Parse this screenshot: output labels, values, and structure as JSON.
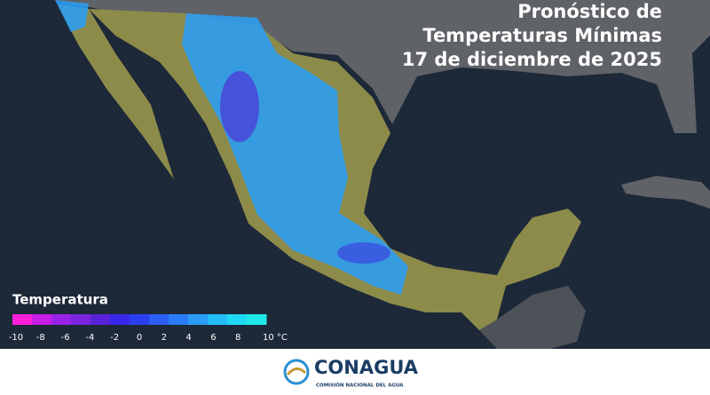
{
  "header": {
    "title_lines": [
      "Pronóstico de",
      "Temperaturas Mínimas",
      "17 de diciembre de 2025"
    ]
  },
  "legend": {
    "title": "Temperatura",
    "ticks": [
      "-10",
      "-8",
      "-6",
      "-4",
      "-2",
      "0",
      "2",
      "4",
      "6",
      "8",
      "10 °C"
    ],
    "colors": [
      "#ff1fd8",
      "#c81ee8",
      "#9a22e8",
      "#7a24e0",
      "#5a22d8",
      "#3a26e8",
      "#2a40f0",
      "#2a5ef4",
      "#2a7cf6",
      "#2a9cf8",
      "#22bcf8",
      "#1ed8f4",
      "#1ee8e8"
    ]
  },
  "footer": {
    "logo": "CONAGUA",
    "logo_subtitle": "COMISIÓN NACIONAL DEL AGUA"
  }
}
